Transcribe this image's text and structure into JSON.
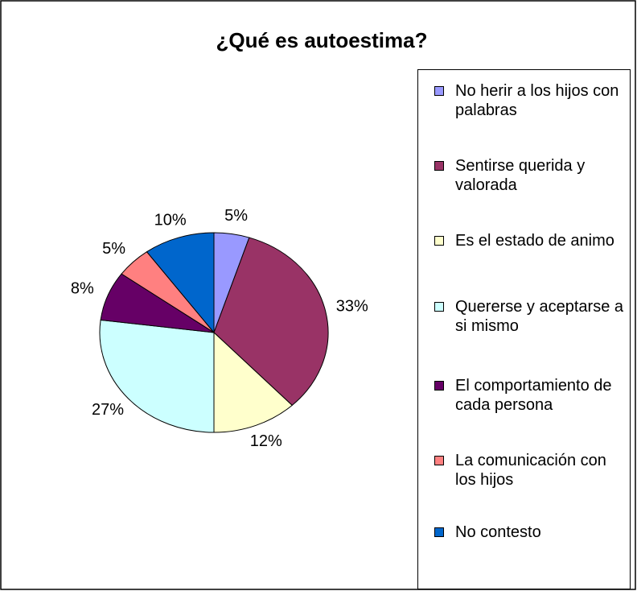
{
  "chart_data": {
    "type": "pie",
    "title": "¿Qué es autoestima?",
    "categories": [
      "No herir a los hijos con palabras",
      "Sentirse querida y valorada",
      "Es el estado de animo",
      "Quererse y aceptarse a si mismo",
      "El comportamiento de cada persona",
      "La comunicación con los hijos",
      "No contesto"
    ],
    "values": [
      5,
      33,
      12,
      27,
      8,
      5,
      10
    ],
    "value_labels": [
      "5%",
      "33%",
      "12%",
      "27%",
      "8%",
      "5%",
      "10%"
    ],
    "colors": [
      "#9999ff",
      "#993366",
      "#ffffcc",
      "#ccffff",
      "#660066",
      "#ff8080",
      "#0066cc"
    ],
    "legend": "right"
  }
}
